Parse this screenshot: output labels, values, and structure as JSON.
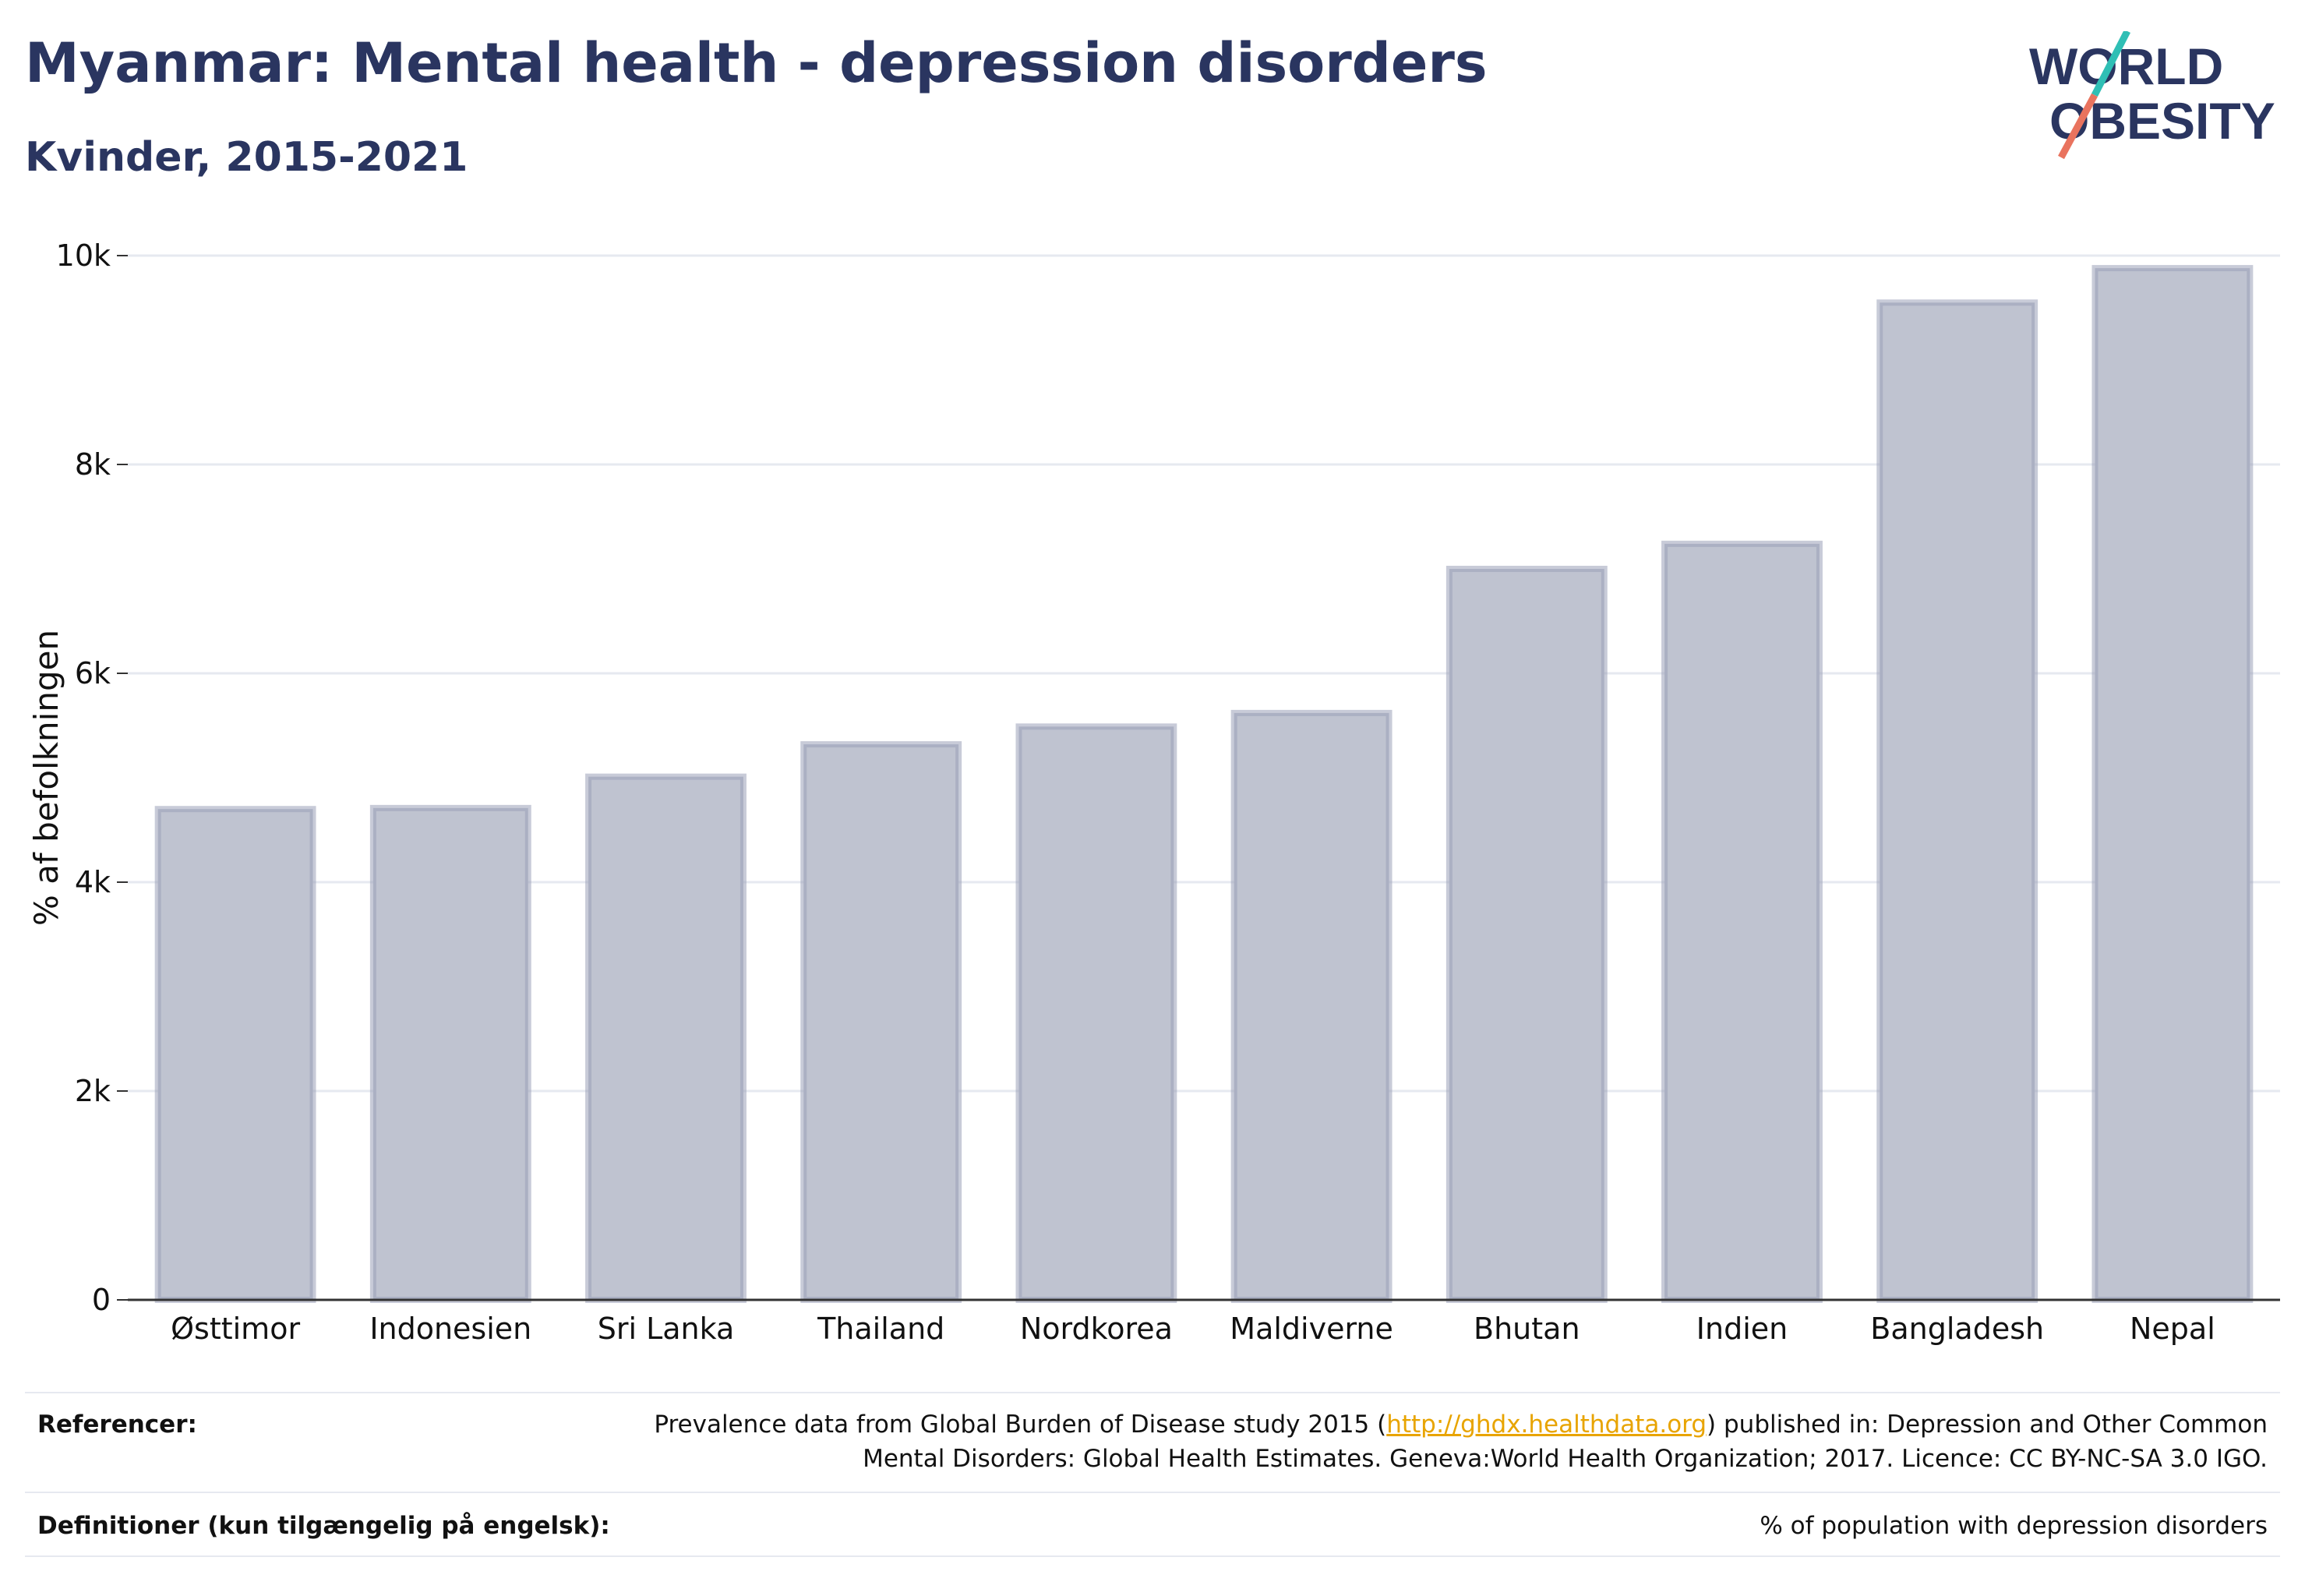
{
  "header": {
    "title": "Myanmar: Mental health - depression disorders",
    "subtitle": "Kvinder, 2015-2021",
    "logo_line1": "WORLD",
    "logo_line2": "OBESITY"
  },
  "chart_data": {
    "type": "bar",
    "title": "Myanmar: Mental health - depression disorders",
    "subtitle": "Kvinder, 2015-2021",
    "xlabel": "",
    "ylabel": "% af befolkningen",
    "ylim": [
      0,
      10000
    ],
    "yticks": [
      0,
      2000,
      4000,
      6000,
      8000,
      10000
    ],
    "ytick_labels": [
      "0",
      "2k",
      "4k",
      "6k",
      "8k",
      "10k"
    ],
    "grid": true,
    "legend": "none",
    "categories": [
      "Østtimor",
      "Indonesien",
      "Sri Lanka",
      "Thailand",
      "Nordkorea",
      "Maldiverne",
      "Bhutan",
      "Indien",
      "Bangladesh",
      "Nepal"
    ],
    "values": [
      4700,
      4710,
      5010,
      5320,
      5490,
      5620,
      7000,
      7240,
      9550,
      9880
    ],
    "colors": {
      "bar_fill": "#bfc3d0",
      "bar_stroke": "#9ba1b8",
      "axis": "#333333",
      "grid": "#e6e9f0"
    }
  },
  "footer": {
    "references_label": "Referencer:",
    "references_text_1": "Prevalence data from Global Burden of Disease study 2015 (",
    "references_link": "http://ghdx.healthdata.org",
    "references_text_2": ") published in: Depression and Other Common",
    "references_text_3": "Mental Disorders: Global Health Estimates. Geneva:World Health Organization; 2017. Licence: CC BY-NC-SA 3.0 IGO.",
    "definitions_label": "Definitioner (kun tilgængelig på engelsk):",
    "definitions_text": "% of population with depression disorders"
  }
}
